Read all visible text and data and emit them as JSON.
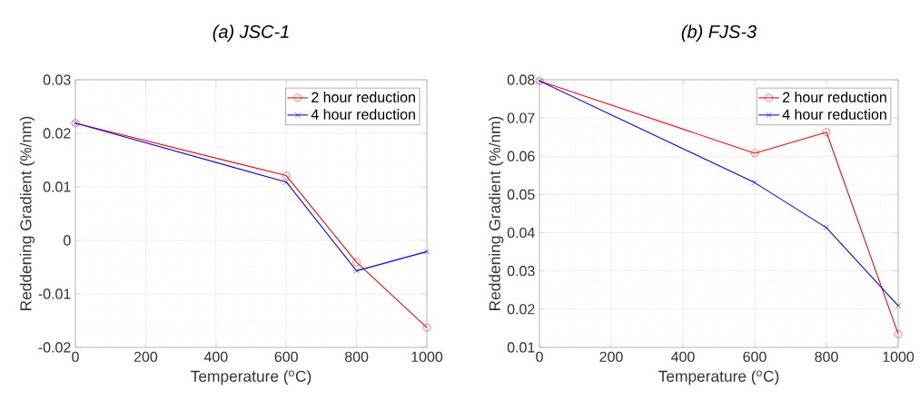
{
  "chart_data": [
    {
      "type": "line",
      "title": "(a) JSC-1",
      "xlabel": "Temperature ($^{o}$C)",
      "ylabel": "Reddening Gradient (%/nm)",
      "xlim": [
        0,
        1000
      ],
      "ylim": [
        -0.02,
        0.03
      ],
      "xticks": [
        0,
        200,
        400,
        600,
        800,
        1000
      ],
      "yticks": [
        -0.02,
        -0.01,
        0,
        0.01,
        0.02,
        0.03
      ],
      "grid": true,
      "legend": "top right",
      "line_style": "solid",
      "series": [
        {
          "name": "2 hour reduction",
          "color": "#ff0000",
          "marker": "circle",
          "x": [
            0,
            600,
            800,
            1000
          ],
          "values": [
            0.0219,
            0.0121,
            -0.0041,
            -0.0163
          ]
        },
        {
          "name": "4 hour reduction",
          "color": "#0000ff",
          "marker": "cross",
          "x": [
            0,
            600,
            800,
            1000
          ],
          "values": [
            0.0219,
            0.0109,
            -0.0057,
            -0.0021
          ]
        }
      ]
    },
    {
      "type": "line",
      "title": "(b) FJS-3",
      "xlabel": "Temperature ($^{o}$C)",
      "ylabel": "Reddening Gradient (%/nm)",
      "xlim": [
        0,
        1000
      ],
      "ylim": [
        0.01,
        0.08
      ],
      "xticks": [
        0,
        200,
        400,
        600,
        800,
        1000
      ],
      "yticks": [
        0.01,
        0.02,
        0.03,
        0.04,
        0.05,
        0.06,
        0.07,
        0.08
      ],
      "grid": true,
      "legend": "top right",
      "line_style": "solid",
      "series": [
        {
          "name": "2 hour reduction",
          "color": "#ff0000",
          "marker": "circle",
          "x": [
            0,
            600,
            800,
            1000
          ],
          "values": [
            0.0797,
            0.0608,
            0.0663,
            0.0135
          ]
        },
        {
          "name": "4 hour reduction",
          "color": "#0000ff",
          "marker": "cross",
          "x": [
            0,
            600,
            800,
            1000
          ],
          "values": [
            0.0797,
            0.0531,
            0.0413,
            0.0209
          ]
        }
      ]
    }
  ]
}
